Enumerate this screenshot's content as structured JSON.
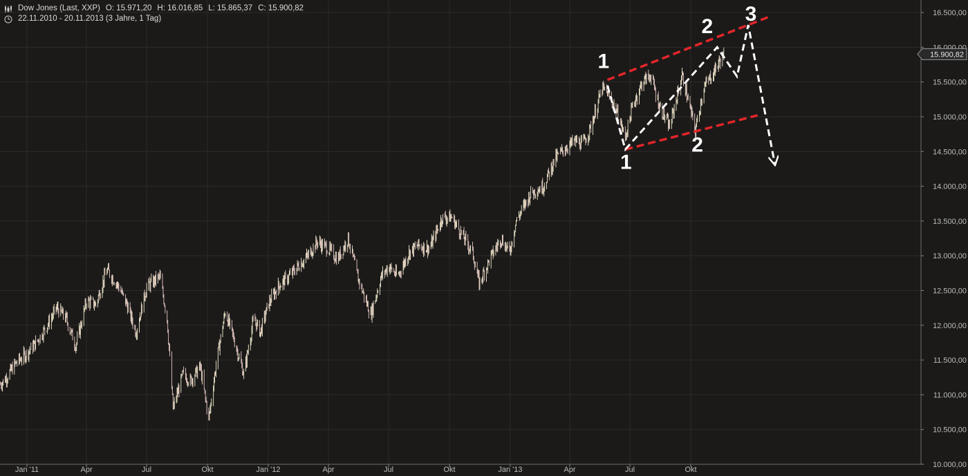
{
  "header": {
    "instrument": "Dow Jones (Last, XXP)",
    "open": "O: 15.971,20",
    "high": "H: 16.016,85",
    "low": "L: 15.865,37",
    "close": "C: 15.900,82",
    "period": "22.11.2010 - 20.11.2013 (3 Jahre, 1 Tag)",
    "chart_icon": "candlestick-icon",
    "period_icon": "clock-icon"
  },
  "chart_data": {
    "type": "line",
    "title": "",
    "xlabel": "",
    "ylabel": "",
    "x_unit": "date",
    "x_range": [
      "2010-11-22",
      "2013-11-20"
    ],
    "ylim": [
      10000,
      16600
    ],
    "y_ticks": [
      10000,
      10500,
      11000,
      11500,
      12000,
      12500,
      13000,
      13500,
      14000,
      14500,
      15000,
      15500,
      16000,
      16500
    ],
    "y_tick_labels": [
      "10.000,00",
      "10.500,00",
      "11.000,00",
      "11.500,00",
      "12.000,00",
      "12.500,00",
      "13.000,00",
      "13.500,00",
      "14.000,00",
      "14.500,00",
      "15.000,00",
      "15.500,00",
      "16.000,00",
      "16.500,00"
    ],
    "x_ticks": [
      "2011-01-01",
      "2011-04-01",
      "2011-07-01",
      "2011-10-01",
      "2012-01-01",
      "2012-04-01",
      "2012-07-01",
      "2012-10-01",
      "2013-01-01",
      "2013-04-01",
      "2013-07-01",
      "2013-10-01"
    ],
    "x_tick_labels": [
      "Jan '11",
      "Apr",
      "Jul",
      "Okt",
      "Jan '12",
      "Apr",
      "Jul",
      "Okt",
      "Jan '13",
      "Apr",
      "Jul",
      "Okt"
    ],
    "grid": true,
    "series": [
      {
        "values": [
          [
            "2010-11-22",
            11150
          ],
          [
            "2010-12-01",
            11250
          ],
          [
            "2010-12-15",
            11450
          ],
          [
            "2011-01-01",
            11600
          ],
          [
            "2011-01-15",
            11750
          ],
          [
            "2011-02-01",
            12000
          ],
          [
            "2011-02-15",
            12250
          ],
          [
            "2011-03-01",
            12100
          ],
          [
            "2011-03-16",
            11700
          ],
          [
            "2011-04-01",
            12350
          ],
          [
            "2011-04-15",
            12300
          ],
          [
            "2011-05-02",
            12800
          ],
          [
            "2011-05-20",
            12550
          ],
          [
            "2011-06-01",
            12300
          ],
          [
            "2011-06-15",
            11900
          ],
          [
            "2011-07-01",
            12550
          ],
          [
            "2011-07-21",
            12700
          ],
          [
            "2011-08-01",
            12100
          ],
          [
            "2011-08-10",
            10800
          ],
          [
            "2011-08-25",
            11300
          ],
          [
            "2011-09-05",
            11200
          ],
          [
            "2011-09-20",
            11400
          ],
          [
            "2011-10-03",
            10650
          ],
          [
            "2011-10-15",
            11500
          ],
          [
            "2011-10-28",
            12200
          ],
          [
            "2011-11-10",
            11800
          ],
          [
            "2011-11-25",
            11300
          ],
          [
            "2011-12-10",
            12100
          ],
          [
            "2011-12-20",
            11900
          ],
          [
            "2012-01-01",
            12300
          ],
          [
            "2012-01-15",
            12550
          ],
          [
            "2012-02-01",
            12700
          ],
          [
            "2012-02-15",
            12850
          ],
          [
            "2012-03-01",
            13000
          ],
          [
            "2012-03-15",
            13200
          ],
          [
            "2012-04-01",
            13100
          ],
          [
            "2012-04-15",
            12950
          ],
          [
            "2012-05-01",
            13250
          ],
          [
            "2012-05-15",
            12700
          ],
          [
            "2012-06-04",
            12150
          ],
          [
            "2012-06-20",
            12700
          ],
          [
            "2012-07-01",
            12850
          ],
          [
            "2012-07-15",
            12700
          ],
          [
            "2012-08-01",
            13050
          ],
          [
            "2012-08-15",
            13150
          ],
          [
            "2012-09-01",
            13100
          ],
          [
            "2012-09-20",
            13550
          ],
          [
            "2012-10-05",
            13550
          ],
          [
            "2012-10-20",
            13300
          ],
          [
            "2012-11-05",
            13050
          ],
          [
            "2012-11-15",
            12600
          ],
          [
            "2012-12-01",
            12950
          ],
          [
            "2012-12-18",
            13250
          ],
          [
            "2012-12-31",
            13050
          ],
          [
            "2013-01-10",
            13500
          ],
          [
            "2013-02-01",
            13900
          ],
          [
            "2013-02-20",
            14000
          ],
          [
            "2013-03-10",
            14400
          ],
          [
            "2013-03-25",
            14550
          ],
          [
            "2013-04-10",
            14650
          ],
          [
            "2013-04-20",
            14600
          ],
          [
            "2013-05-01",
            14800
          ],
          [
            "2013-05-20",
            15400
          ],
          [
            "2013-05-28",
            15350
          ],
          [
            "2013-06-10",
            15100
          ],
          [
            "2013-06-24",
            14700
          ],
          [
            "2013-07-05",
            15150
          ],
          [
            "2013-07-20",
            15500
          ],
          [
            "2013-08-01",
            15600
          ],
          [
            "2013-08-15",
            15150
          ],
          [
            "2013-08-30",
            14850
          ],
          [
            "2013-09-18",
            15600
          ],
          [
            "2013-10-08",
            14800
          ],
          [
            "2013-10-20",
            15400
          ],
          [
            "2013-11-05",
            15650
          ],
          [
            "2013-11-20",
            15900
          ]
        ]
      }
    ],
    "last_price_label": "15.900,82",
    "annotations": {
      "channel_color": "#e3262a",
      "path_color": "#ffffff",
      "channel_upper": [
        [
          "2013-05-28",
          15530
        ],
        [
          "2014-01-28",
          16440
        ]
      ],
      "channel_lower": [
        [
          "2013-06-24",
          14530
        ],
        [
          "2014-01-10",
          15020
        ]
      ],
      "wave_path": [
        [
          "2013-05-28",
          15450
        ],
        [
          "2013-06-24",
          14530
        ],
        [
          "2013-11-10",
          16000
        ],
        [
          "2013-12-10",
          15580
        ],
        [
          "2013-12-27",
          16320
        ],
        [
          "2014-02-05",
          14330
        ]
      ],
      "labels": [
        {
          "text": "1",
          "x": "2013-05-22",
          "y": 15700
        },
        {
          "text": "1",
          "x": "2013-06-25",
          "y": 14250
        },
        {
          "text": "2",
          "x": "2013-10-26",
          "y": 16200
        },
        {
          "text": "2",
          "x": "2013-10-11",
          "y": 14500
        },
        {
          "text": "3",
          "x": "2013-12-31",
          "y": 16380
        }
      ]
    }
  }
}
